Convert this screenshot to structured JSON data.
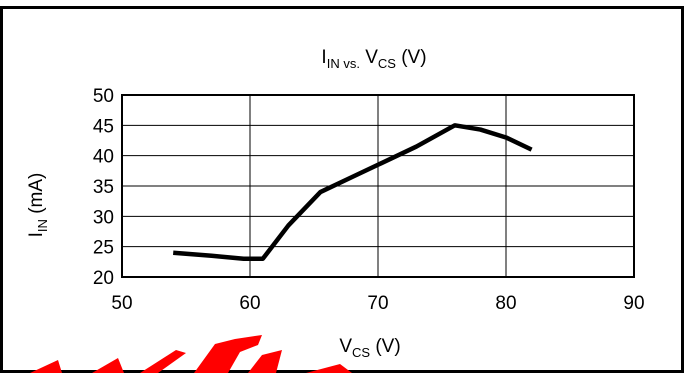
{
  "chart_data": {
    "type": "line",
    "title": {
      "main": "I",
      "sub": "IN vs.",
      "rest": " V",
      "rest_sub": "CS",
      "tail": " (V)"
    },
    "xlabel": {
      "main": "V",
      "sub": "CS",
      "tail": " (V)"
    },
    "ylabel": {
      "main": "I",
      "sub": "IN",
      "tail": " (mA)"
    },
    "xlim": [
      50,
      90
    ],
    "ylim": [
      20,
      50
    ],
    "xticks": [
      50,
      60,
      70,
      80,
      90
    ],
    "yticks": [
      20,
      25,
      30,
      35,
      40,
      45,
      50
    ],
    "grid": true,
    "series": [
      {
        "color": "#000000",
        "x": [
          54,
          57,
          59.5,
          61,
          63,
          65.5,
          68,
          70,
          73,
          76,
          78,
          80,
          82
        ],
        "y": [
          24,
          23.5,
          23,
          23,
          28.5,
          34,
          36.5,
          38.5,
          41.5,
          45,
          44.3,
          43,
          41
        ]
      }
    ]
  },
  "stamp": {
    "color": "#ff0000"
  }
}
